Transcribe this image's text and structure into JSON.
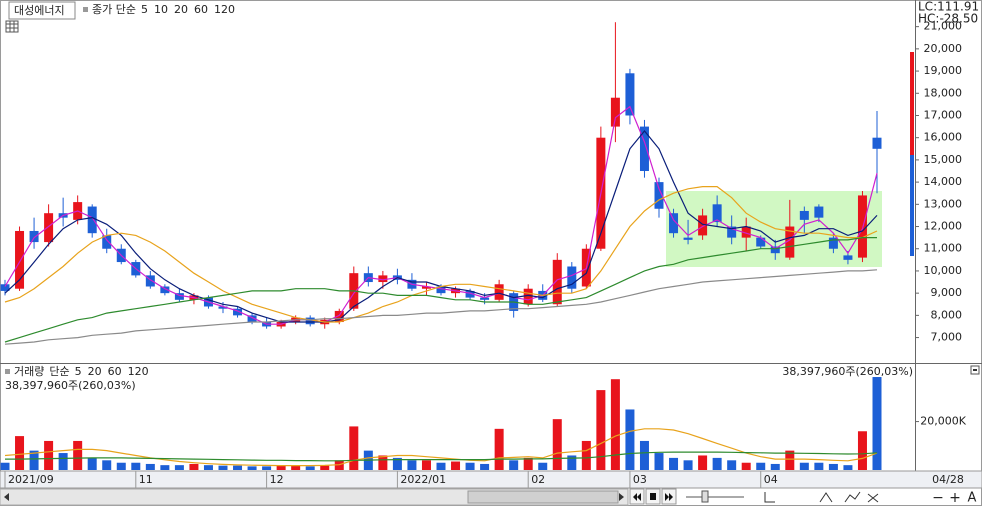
{
  "chart_data": [
    {
      "type": "candlestick",
      "title": "대성에너지",
      "legend_prefix": "종가 단순",
      "indicators": [
        {
          "text": "LC:111.91",
          "color": "#e8141c"
        },
        {
          "text": "HC:-28.50",
          "color": "#1d5fd6"
        }
      ],
      "up_color": "#e8141c",
      "down_color": "#1d5fd6",
      "categories": [
        "2021/09",
        null,
        null,
        null,
        null,
        null,
        null,
        null,
        null,
        "11",
        null,
        null,
        null,
        null,
        null,
        null,
        null,
        null,
        "12",
        null,
        null,
        null,
        null,
        null,
        null,
        null,
        null,
        "2022/01",
        null,
        null,
        null,
        null,
        null,
        null,
        null,
        null,
        "02",
        null,
        null,
        null,
        null,
        null,
        null,
        "03",
        null,
        null,
        null,
        null,
        null,
        null,
        null,
        null,
        "04",
        null,
        null,
        null,
        null,
        null,
        null,
        null,
        null
      ],
      "last_date": "04/28",
      "open": [
        9400,
        9200,
        11800,
        11300,
        12600,
        12300,
        12900,
        11600,
        11000,
        10400,
        9800,
        9300,
        9000,
        8700,
        8800,
        8400,
        8300,
        8000,
        7700,
        7500,
        7700,
        7900,
        7600,
        7700,
        8300,
        9900,
        9500,
        9800,
        9600,
        9200,
        9300,
        9000,
        9100,
        8800,
        8700,
        9000,
        8500,
        9100,
        8500,
        10200,
        9300,
        11000,
        16500,
        18900,
        16500,
        14000,
        12600,
        11500,
        11600,
        13000,
        12000,
        11500,
        11500,
        11100,
        10600,
        12700,
        12900,
        11500,
        10700,
        10600,
        16000
      ],
      "high": [
        9600,
        12000,
        12400,
        13000,
        13300,
        13400,
        13000,
        11900,
        11200,
        10500,
        10000,
        9400,
        9200,
        9000,
        8900,
        8600,
        8400,
        8100,
        7900,
        7800,
        8000,
        8000,
        7900,
        8300,
        10200,
        10200,
        10000,
        10100,
        9900,
        9500,
        9400,
        9300,
        9200,
        9000,
        9600,
        9100,
        9400,
        9400,
        10800,
        10400,
        11200,
        16500,
        21200,
        19100,
        16800,
        14200,
        12800,
        12300,
        12800,
        13400,
        12500,
        12400,
        11600,
        11400,
        13200,
        12900,
        13000,
        11700,
        10900,
        13600,
        17200
      ],
      "low": [
        8900,
        9100,
        11000,
        11100,
        12000,
        12100,
        11500,
        10800,
        10300,
        9700,
        9200,
        8900,
        8600,
        8500,
        8300,
        8100,
        7900,
        7600,
        7400,
        7400,
        7600,
        7500,
        7400,
        7600,
        8200,
        9300,
        9200,
        9400,
        9100,
        8900,
        8900,
        8800,
        8700,
        8500,
        8600,
        7900,
        8400,
        8600,
        8400,
        9000,
        9200,
        10900,
        15800,
        16600,
        14200,
        12400,
        11500,
        11200,
        11400,
        12000,
        11200,
        10900,
        11000,
        10500,
        10500,
        11700,
        12200,
        10800,
        10300,
        10400,
        13500
      ],
      "close": [
        9100,
        11800,
        11300,
        12600,
        12400,
        13100,
        11700,
        11000,
        10400,
        9800,
        9300,
        9000,
        8700,
        8900,
        8400,
        8300,
        8000,
        7700,
        7500,
        7700,
        7900,
        7600,
        7800,
        8200,
        9900,
        9500,
        9800,
        9600,
        9200,
        9300,
        9000,
        9200,
        8800,
        8700,
        9400,
        8200,
        9200,
        8700,
        10500,
        9200,
        11000,
        16000,
        17800,
        17000,
        14500,
        12800,
        11700,
        11400,
        12500,
        12200,
        11500,
        12000,
        11100,
        10800,
        12000,
        12300,
        12400,
        11000,
        10500,
        13400,
        15500
      ],
      "series": [
        {
          "name": "5",
          "color": "#d01fd0",
          "values": [
            9300,
            10400,
            11500,
            12000,
            12500,
            12700,
            12400,
            11400,
            10700,
            10100,
            9600,
            9200,
            8900,
            8800,
            8600,
            8400,
            8200,
            7900,
            7600,
            7600,
            7800,
            7800,
            7700,
            8000,
            9000,
            9700,
            9600,
            9700,
            9400,
            9300,
            9200,
            9100,
            9000,
            8800,
            9000,
            8800,
            8700,
            8900,
            9600,
            9800,
            10100,
            13500,
            16900,
            17400,
            15800,
            13700,
            12300,
            11600,
            12000,
            12300,
            11900,
            11700,
            11500,
            11000,
            11400,
            12100,
            12300,
            11700,
            10800,
            11900,
            14400
          ]
        },
        {
          "name": "10",
          "color": "#0a1e7a",
          "values": [
            9000,
            9600,
            10400,
            11200,
            11900,
            12300,
            12400,
            12100,
            11600,
            10800,
            10100,
            9600,
            9200,
            8900,
            8700,
            8500,
            8400,
            8100,
            7900,
            7700,
            7700,
            7700,
            7700,
            7800,
            8400,
            8800,
            9300,
            9700,
            9500,
            9500,
            9300,
            9200,
            9100,
            8900,
            9000,
            8800,
            8900,
            8800,
            9200,
            9400,
            9900,
            11700,
            13600,
            15500,
            16300,
            15500,
            14000,
            12600,
            12100,
            12000,
            11900,
            12000,
            11800,
            11300,
            11500,
            11600,
            11900,
            11900,
            11600,
            11800,
            12500
          ]
        },
        {
          "name": "20",
          "color": "#e8a31c",
          "values": [
            8600,
            8800,
            9200,
            9700,
            10200,
            10800,
            11300,
            11600,
            11700,
            11600,
            11300,
            10900,
            10400,
            9900,
            9500,
            9100,
            8800,
            8500,
            8300,
            8100,
            7900,
            7800,
            7700,
            7700,
            7900,
            8100,
            8400,
            8600,
            8900,
            9100,
            9300,
            9400,
            9400,
            9300,
            9200,
            9100,
            9000,
            8900,
            9000,
            9000,
            9200,
            10000,
            11000,
            12000,
            12700,
            13200,
            13500,
            13700,
            13800,
            13800,
            13300,
            12600,
            12200,
            11900,
            11800,
            11700,
            11700,
            11600,
            11500,
            11500,
            11800
          ]
        },
        {
          "name": "60",
          "color": "#2e8b2e",
          "values": [
            6800,
            7000,
            7200,
            7400,
            7600,
            7800,
            7900,
            8100,
            8200,
            8300,
            8400,
            8500,
            8600,
            8700,
            8800,
            8900,
            9000,
            9100,
            9100,
            9100,
            9200,
            9200,
            9200,
            9100,
            9100,
            9000,
            9000,
            8900,
            8900,
            8900,
            8800,
            8700,
            8700,
            8600,
            8600,
            8600,
            8500,
            8500,
            8600,
            8700,
            8800,
            9100,
            9400,
            9700,
            10000,
            10200,
            10300,
            10500,
            10600,
            10700,
            10800,
            10900,
            11000,
            11000,
            11100,
            11200,
            11300,
            11400,
            11400,
            11500,
            11500
          ]
        },
        {
          "name": "120",
          "color": "#8a8a8a",
          "values": [
            6700,
            6750,
            6800,
            6900,
            6950,
            7000,
            7100,
            7150,
            7200,
            7300,
            7350,
            7400,
            7450,
            7500,
            7550,
            7600,
            7650,
            7700,
            7700,
            7750,
            7800,
            7800,
            7850,
            7850,
            7900,
            7950,
            8000,
            8000,
            8050,
            8100,
            8100,
            8150,
            8200,
            8200,
            8250,
            8300,
            8300,
            8350,
            8400,
            8450,
            8500,
            8600,
            8750,
            8900,
            9050,
            9200,
            9300,
            9400,
            9500,
            9550,
            9600,
            9650,
            9700,
            9750,
            9800,
            9850,
            9900,
            9950,
            10000,
            10000,
            10050
          ]
        }
      ],
      "ylim": [
        5900,
        22200
      ],
      "yticks": [
        {
          "value": 7000,
          "label": "7,000"
        },
        {
          "value": 8000,
          "label": "8,000"
        },
        {
          "value": 9000,
          "label": "9,000"
        },
        {
          "value": 10000,
          "label": "10,000"
        },
        {
          "value": 11000,
          "label": "11,000"
        },
        {
          "value": 12000,
          "label": "12,000"
        },
        {
          "value": 13000,
          "label": "13,000"
        },
        {
          "value": 14000,
          "label": "14,000"
        },
        {
          "value": 15000,
          "label": "15,000"
        },
        {
          "value": 16000,
          "label": "16,000"
        },
        {
          "value": 17000,
          "label": "17,000"
        },
        {
          "value": 18000,
          "label": "18,000"
        },
        {
          "value": 19000,
          "label": "19,000"
        },
        {
          "value": 20000,
          "label": "20,000"
        },
        {
          "value": 21000,
          "label": "21,000"
        }
      ]
    },
    {
      "type": "bar",
      "title": "거래량",
      "legend_prefix": "단순",
      "title_color": "#1a8a8a",
      "last_value_label": "38,397,960주(260,03%)",
      "values": [
        3000,
        14000,
        8000,
        12000,
        7000,
        12000,
        5000,
        4000,
        3000,
        3000,
        2500,
        2000,
        2000,
        2500,
        2000,
        1800,
        1800,
        1500,
        1500,
        1800,
        2000,
        1500,
        1800,
        4000,
        18000,
        8000,
        6000,
        5000,
        4000,
        4000,
        3000,
        3500,
        3000,
        2500,
        17000,
        4000,
        5000,
        3000,
        21000,
        6000,
        12000,
        33000,
        37500,
        25000,
        12000,
        7000,
        5000,
        4000,
        6000,
        5000,
        4000,
        3000,
        3000,
        2500,
        8000,
        3000,
        3000,
        2500,
        2000,
        16000,
        38398
      ],
      "series": [
        {
          "name": "5",
          "color": "#d01fd0"
        },
        {
          "name": "20",
          "color": "#e8a31c",
          "values": [
            6000,
            6500,
            7000,
            7500,
            8000,
            8500,
            8500,
            8000,
            7000,
            6000,
            5000,
            4200,
            3500,
            3000,
            2600,
            2300,
            2100,
            2000,
            1900,
            1800,
            1800,
            1800,
            1900,
            2200,
            4000,
            5000,
            5500,
            6000,
            6000,
            5500,
            5000,
            4500,
            4000,
            3800,
            5000,
            5200,
            5500,
            5000,
            7000,
            7500,
            8000,
            11000,
            14000,
            16000,
            17000,
            17000,
            16500,
            15000,
            13000,
            11000,
            9000,
            7000,
            5500,
            4500,
            4500,
            4500,
            4300,
            4000,
            3800,
            4800,
            7000
          ]
        },
        {
          "name": "60",
          "color": "#2e8b2e",
          "values": [
            4500,
            4500,
            4600,
            4700,
            4800,
            4900,
            5000,
            5000,
            5000,
            4900,
            4800,
            4700,
            4600,
            4500,
            4400,
            4300,
            4200,
            4100,
            4000,
            4000,
            3900,
            3900,
            3800,
            3800,
            4000,
            4100,
            4200,
            4300,
            4300,
            4300,
            4300,
            4300,
            4300,
            4300,
            4500,
            4500,
            4600,
            4600,
            4800,
            4900,
            5000,
            5500,
            6200,
            6800,
            7100,
            7300,
            7400,
            7400,
            7400,
            7400,
            7300,
            7200,
            7100,
            7000,
            7000,
            6900,
            6800,
            6700,
            6600,
            6700,
            7100
          ]
        },
        {
          "name": "120",
          "color": "#8a8a8a"
        }
      ],
      "ylim": [
        0,
        41300
      ],
      "yticks": [
        {
          "value": 20000,
          "label": "20,000K"
        }
      ]
    }
  ],
  "toolbar": {
    "zoom_out": "−",
    "zoom_in": "+",
    "font": "A"
  }
}
